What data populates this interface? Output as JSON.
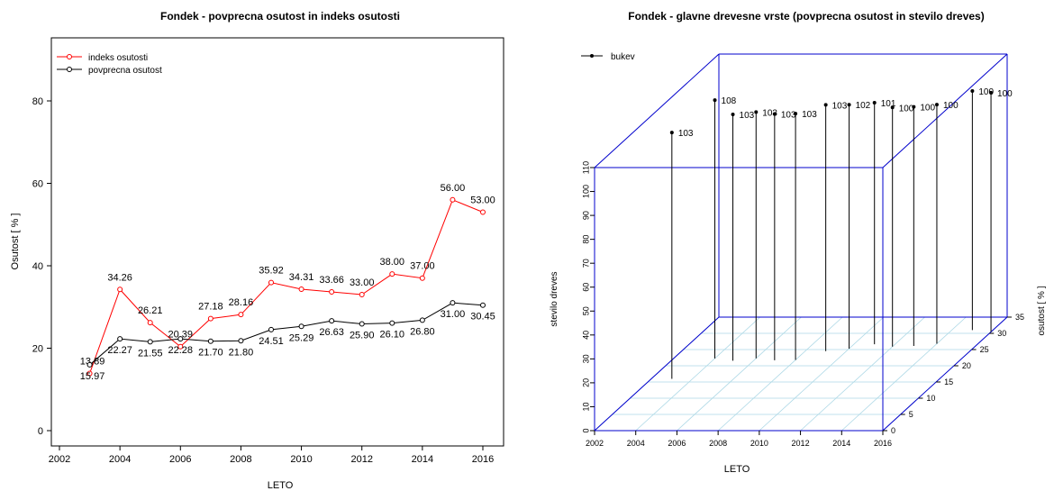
{
  "chart_data": [
    {
      "type": "line",
      "title": "Fondek - povprecna osutost in indeks osutosti",
      "xlabel": "LETO",
      "ylabel": "Osutost [ % ]",
      "xlim": [
        2002,
        2016
      ],
      "ylim": [
        0,
        90
      ],
      "xticks": [
        2002,
        2004,
        2006,
        2008,
        2010,
        2012,
        2014,
        2016
      ],
      "yticks": [
        0,
        20,
        40,
        60,
        80
      ],
      "legend_position": "top-left",
      "x": [
        2003,
        2004,
        2005,
        2006,
        2007,
        2008,
        2009,
        2010,
        2011,
        2012,
        2013,
        2014,
        2015,
        2016
      ],
      "series": [
        {
          "name": "indeks osutosti",
          "color": "#ff0000",
          "values": [
            13.89,
            34.26,
            26.21,
            20.39,
            27.18,
            28.16,
            35.92,
            34.31,
            33.66,
            33.0,
            38.0,
            37.0,
            56.0,
            53.0
          ],
          "labels": [
            "13.89",
            "34.26",
            "26.21",
            "20.39",
            "27.18",
            "28.16",
            "35.92",
            "34.31",
            "33.66",
            "33.00",
            "38.00",
            "37.00",
            "56.00",
            "53.00"
          ]
        },
        {
          "name": "povprecna osutost",
          "color": "#000000",
          "values": [
            15.97,
            22.27,
            21.55,
            22.28,
            21.7,
            21.8,
            24.51,
            25.29,
            26.63,
            25.9,
            26.1,
            26.8,
            31.0,
            30.45
          ],
          "labels": [
            "15.97",
            "22.27",
            "21.55",
            "22.28",
            "21.70",
            "21.80",
            "24.51",
            "25.29",
            "26.63",
            "25.90",
            "26.10",
            "26.80",
            "31.00",
            "30.45"
          ]
        }
      ]
    },
    {
      "type": "scatter3d",
      "title": "Fondek - glavne drevesne vrste (povprecna osutost in stevilo dreves)",
      "xlabel": "LETO",
      "ylabel": "osutost [ % ]",
      "zlabel": "stevilo dreves",
      "xlim": [
        2002,
        2016
      ],
      "ylim": [
        0,
        35
      ],
      "zlim": [
        0,
        110
      ],
      "xticks": [
        2002,
        2004,
        2006,
        2008,
        2010,
        2012,
        2014,
        2016
      ],
      "yticks": [
        0,
        5,
        10,
        15,
        20,
        25,
        30,
        35
      ],
      "zticks": [
        0,
        10,
        20,
        30,
        40,
        50,
        60,
        70,
        80,
        90,
        100,
        110
      ],
      "box_color": "#0000cc",
      "grid_color": "#add8e6",
      "legend_position": "top-left",
      "series": [
        {
          "name": "bukev",
          "color": "#000000",
          "x": [
            2003,
            2004,
            2005,
            2006,
            2007,
            2008,
            2009,
            2010,
            2011,
            2012,
            2013,
            2014,
            2015,
            2016
          ],
          "y": [
            15.97,
            22.27,
            21.55,
            22.28,
            21.7,
            21.8,
            24.51,
            25.29,
            26.63,
            25.9,
            26.1,
            26.8,
            31.0,
            30.45
          ],
          "z": [
            103,
            108,
            103,
            103,
            103,
            103,
            103,
            102,
            101,
            100,
            100,
            100,
            100,
            100
          ],
          "labels": [
            "103",
            "108",
            "103",
            "103",
            "103",
            "103",
            "103",
            "102",
            "101",
            "100",
            "100",
            "100",
            "100",
            "100"
          ]
        }
      ]
    }
  ]
}
